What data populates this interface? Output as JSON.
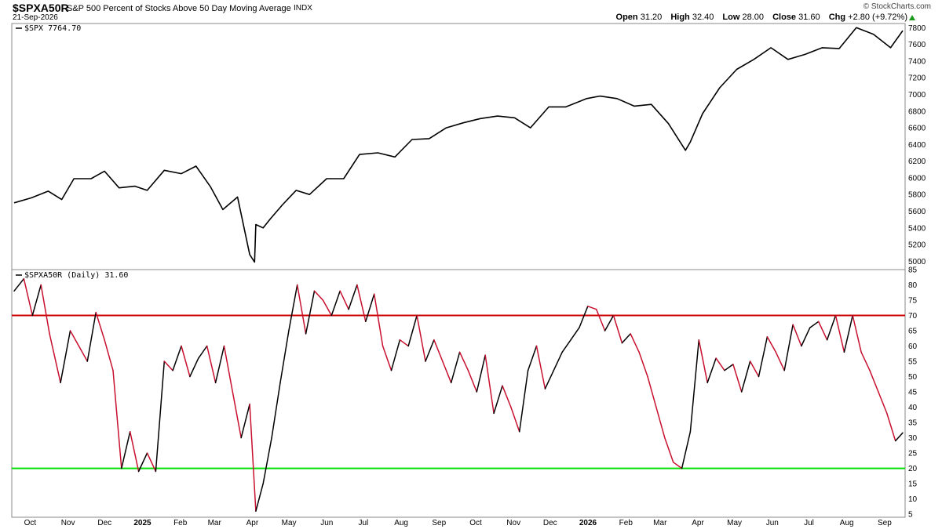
{
  "header": {
    "symbol": "$SPXA50R",
    "description": "S&P 500 Percent of Stocks Above 50 Day Moving Average",
    "exchange": "INDX",
    "date": "21-Sep-2026",
    "brand": "© StockCharts.com",
    "open_label": "Open",
    "open": "31.20",
    "high_label": "High",
    "high": "32.40",
    "low_label": "Low",
    "low": "28.00",
    "close_label": "Close",
    "close": "31.60",
    "chg_label": "Chg",
    "chg": "+2.80 (+9.72%)"
  },
  "colors": {
    "price_line": "#000000",
    "up_line": "#000000",
    "down_line": "#c8102e",
    "overbought_line": "#cc0000",
    "oversold_line": "#00dd00",
    "positive_chg": "#1a9a1a"
  },
  "chart_data": [
    {
      "type": "line",
      "legend": "$SPX 7764.70",
      "ylim": [
        4900,
        7850
      ],
      "y_ticks": [
        5000,
        5200,
        5400,
        5600,
        5800,
        6000,
        6200,
        6400,
        6600,
        6800,
        7000,
        7200,
        7400,
        7600,
        7800
      ],
      "x": [
        "2024-09-23",
        "2024-10-07",
        "2024-10-21",
        "2024-11-01",
        "2024-11-11",
        "2024-11-25",
        "2024-12-06",
        "2024-12-18",
        "2024-12-31",
        "2025-01-10",
        "2025-01-24",
        "2025-02-07",
        "2025-02-19",
        "2025-03-03",
        "2025-03-13",
        "2025-03-25",
        "2025-04-04",
        "2025-04-08",
        "2025-04-09",
        "2025-04-15",
        "2025-04-21",
        "2025-05-01",
        "2025-05-12",
        "2025-05-23",
        "2025-06-06",
        "2025-06-20",
        "2025-07-03",
        "2025-07-18",
        "2025-08-01",
        "2025-08-15",
        "2025-08-29",
        "2025-09-12",
        "2025-09-26",
        "2025-10-10",
        "2025-10-24",
        "2025-11-07",
        "2025-11-20",
        "2025-12-05",
        "2025-12-19",
        "2026-01-05",
        "2026-01-16",
        "2026-01-30",
        "2026-02-13",
        "2026-02-27",
        "2026-03-13",
        "2026-03-27",
        "2026-03-31",
        "2026-04-10",
        "2026-04-24",
        "2026-05-08",
        "2026-05-22",
        "2026-06-05",
        "2026-06-19",
        "2026-07-03",
        "2026-07-17",
        "2026-07-31",
        "2026-08-14",
        "2026-08-28",
        "2026-09-11",
        "2026-09-21"
      ],
      "series": [
        {
          "values": [
            5700,
            5760,
            5840,
            5740,
            5990,
            5990,
            6080,
            5880,
            5900,
            5850,
            6090,
            6050,
            6140,
            5890,
            5620,
            5770,
            5080,
            4990,
            5440,
            5400,
            5510,
            5680,
            5850,
            5800,
            5990,
            5990,
            6280,
            6300,
            6250,
            6460,
            6470,
            6600,
            6660,
            6710,
            6740,
            6720,
            6600,
            6850,
            6850,
            6950,
            6980,
            6950,
            6860,
            6880,
            6650,
            6330,
            6430,
            6770,
            7080,
            7300,
            7420,
            7560,
            7420,
            7480,
            7560,
            7550,
            7800,
            7720,
            7560,
            7764.7
          ]
        }
      ]
    },
    {
      "type": "line",
      "legend": "$SPXA50R (Daily) 31.60",
      "ylim": [
        4,
        85
      ],
      "y_ticks": [
        5,
        10,
        15,
        20,
        25,
        30,
        35,
        40,
        45,
        50,
        55,
        60,
        65,
        70,
        75,
        80,
        85
      ],
      "reference_lines": [
        70,
        20
      ],
      "x_tick_labels": [
        "Oct",
        "Nov",
        "Dec",
        "2025",
        "Feb",
        "Mar",
        "Apr",
        "May",
        "Jun",
        "Jul",
        "Aug",
        "Sep",
        "Oct",
        "Nov",
        "Dec",
        "2026",
        "Feb",
        "Mar",
        "Apr",
        "May",
        "Jun",
        "Jul",
        "Aug",
        "Sep"
      ],
      "x": [
        "2024-09-23",
        "2024-10-01",
        "2024-10-08",
        "2024-10-15",
        "2024-10-22",
        "2024-10-31",
        "2024-11-08",
        "2024-11-15",
        "2024-11-22",
        "2024-11-29",
        "2024-12-06",
        "2024-12-13",
        "2024-12-20",
        "2024-12-27",
        "2025-01-03",
        "2025-01-10",
        "2025-01-17",
        "2025-01-24",
        "2025-01-31",
        "2025-02-07",
        "2025-02-14",
        "2025-02-21",
        "2025-02-28",
        "2025-03-07",
        "2025-03-14",
        "2025-03-21",
        "2025-03-28",
        "2025-04-04",
        "2025-04-09",
        "2025-04-15",
        "2025-04-22",
        "2025-04-29",
        "2025-05-06",
        "2025-05-13",
        "2025-05-20",
        "2025-05-27",
        "2025-06-03",
        "2025-06-10",
        "2025-06-17",
        "2025-06-24",
        "2025-07-01",
        "2025-07-08",
        "2025-07-15",
        "2025-07-22",
        "2025-07-29",
        "2025-08-05",
        "2025-08-12",
        "2025-08-19",
        "2025-08-26",
        "2025-09-02",
        "2025-09-09",
        "2025-09-16",
        "2025-09-23",
        "2025-09-30",
        "2025-10-07",
        "2025-10-14",
        "2025-10-21",
        "2025-10-28",
        "2025-11-04",
        "2025-11-11",
        "2025-11-18",
        "2025-11-25",
        "2025-12-02",
        "2025-12-09",
        "2025-12-16",
        "2025-12-23",
        "2025-12-30",
        "2026-01-06",
        "2026-01-13",
        "2026-01-20",
        "2026-01-27",
        "2026-02-03",
        "2026-02-10",
        "2026-02-17",
        "2026-02-24",
        "2026-03-03",
        "2026-03-10",
        "2026-03-17",
        "2026-03-24",
        "2026-03-31",
        "2026-04-07",
        "2026-04-14",
        "2026-04-21",
        "2026-04-28",
        "2026-05-05",
        "2026-05-12",
        "2026-05-19",
        "2026-05-26",
        "2026-06-02",
        "2026-06-09",
        "2026-06-16",
        "2026-06-23",
        "2026-06-30",
        "2026-07-07",
        "2026-07-14",
        "2026-07-21",
        "2026-07-28",
        "2026-08-04",
        "2026-08-11",
        "2026-08-18",
        "2026-08-25",
        "2026-09-01",
        "2026-09-08",
        "2026-09-15",
        "2026-09-21"
      ],
      "series": [
        {
          "values": [
            78,
            82,
            70,
            80,
            64,
            48,
            65,
            60,
            55,
            71,
            62,
            52,
            20,
            32,
            19,
            25,
            19,
            55,
            52,
            60,
            50,
            56,
            60,
            48,
            60,
            45,
            30,
            41,
            6,
            15,
            30,
            48,
            65,
            80,
            64,
            78,
            75,
            70,
            78,
            72,
            80,
            68,
            77,
            60,
            52,
            62,
            60,
            70,
            55,
            62,
            55,
            48,
            58,
            52,
            45,
            57,
            38,
            47,
            40,
            32,
            52,
            60,
            46,
            52,
            58,
            62,
            66,
            73,
            72,
            65,
            70,
            61,
            64,
            58,
            50,
            40,
            30,
            22,
            20,
            32,
            62,
            48,
            56,
            52,
            54,
            45,
            55,
            50,
            63,
            58,
            52,
            67,
            60,
            66,
            68,
            62,
            70,
            58,
            70,
            58,
            52,
            45,
            38,
            29,
            31.6
          ]
        }
      ]
    }
  ]
}
